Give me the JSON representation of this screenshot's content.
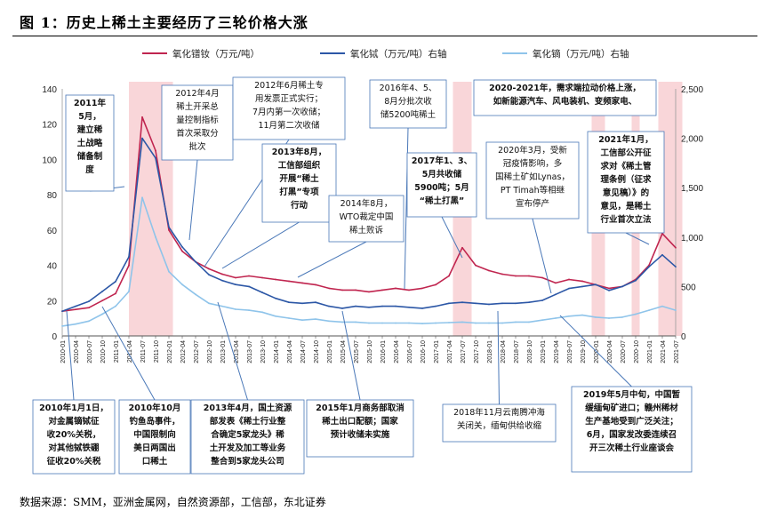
{
  "figure": {
    "title": "图 1：历史上稀土主要经历了三轮价格大涨",
    "source": "数据来源：SMM，亚洲金属网，自然资源部，工信部，东北证券"
  },
  "chart_data": {
    "type": "line",
    "left_axis": {
      "ylim": [
        0,
        140
      ],
      "ticks": [
        0,
        20,
        40,
        60,
        80,
        100,
        120,
        140
      ]
    },
    "right_axis": {
      "ylim": [
        0,
        2500
      ],
      "ticks": [
        0,
        500,
        1000,
        1500,
        2000,
        2500
      ],
      "tick_labels": [
        "0",
        "500",
        "1,000",
        "1,500",
        "2,000",
        "2,500"
      ]
    },
    "x_labels": [
      "2010-01",
      "2010-04",
      "2010-07",
      "2010-10",
      "2011-01",
      "2011-04",
      "2011-07",
      "2011-10",
      "2012-01",
      "2012-04",
      "2012-07",
      "2012-10",
      "2013-01",
      "2013-04",
      "2013-07",
      "2013-10",
      "2014-01",
      "2014-04",
      "2014-07",
      "2014-10",
      "2015-01",
      "2015-04",
      "2015-07",
      "2015-10",
      "2016-01",
      "2016-04",
      "2016-07",
      "2016-10",
      "2017-01",
      "2017-04",
      "2017-07",
      "2017-10",
      "2018-01",
      "2018-04",
      "2018-07",
      "2018-10",
      "2019-01",
      "2019-04",
      "2019-07",
      "2019-10",
      "2020-01",
      "2020-04",
      "2020-07",
      "2020-10",
      "2021-01",
      "2021-04",
      "2021-07"
    ],
    "series": [
      {
        "name": "氧化镨钕（万元/吨）",
        "axis": "left",
        "color": "#c0254f",
        "points": [
          [
            0,
            14
          ],
          [
            1,
            15
          ],
          [
            2,
            16
          ],
          [
            3,
            20
          ],
          [
            4,
            24
          ],
          [
            5,
            40
          ],
          [
            6,
            124
          ],
          [
            7,
            105
          ],
          [
            8,
            60
          ],
          [
            9,
            48
          ],
          [
            10,
            42
          ],
          [
            11,
            38
          ],
          [
            12,
            35
          ],
          [
            13,
            33
          ],
          [
            14,
            34
          ],
          [
            15,
            33
          ],
          [
            16,
            32
          ],
          [
            17,
            31
          ],
          [
            18,
            30
          ],
          [
            19,
            29
          ],
          [
            20,
            27
          ],
          [
            21,
            26
          ],
          [
            22,
            26
          ],
          [
            23,
            25
          ],
          [
            24,
            26
          ],
          [
            25,
            27
          ],
          [
            26,
            26
          ],
          [
            27,
            27
          ],
          [
            28,
            29
          ],
          [
            29,
            34
          ],
          [
            30,
            50
          ],
          [
            31,
            40
          ],
          [
            32,
            37
          ],
          [
            33,
            35
          ],
          [
            34,
            34
          ],
          [
            35,
            34
          ],
          [
            36,
            33
          ],
          [
            37,
            30
          ],
          [
            38,
            32
          ],
          [
            39,
            31
          ],
          [
            40,
            29
          ],
          [
            41,
            27
          ],
          [
            42,
            28
          ],
          [
            43,
            32
          ],
          [
            44,
            40
          ],
          [
            45,
            58
          ],
          [
            46,
            50
          ]
        ]
      },
      {
        "name": "氧化铽（万元/吨）右轴",
        "axis": "right",
        "color": "#2c57a6",
        "points": [
          [
            0,
            250
          ],
          [
            1,
            300
          ],
          [
            2,
            350
          ],
          [
            3,
            450
          ],
          [
            4,
            550
          ],
          [
            5,
            800
          ],
          [
            6,
            2000
          ],
          [
            7,
            1800
          ],
          [
            8,
            1100
          ],
          [
            9,
            900
          ],
          [
            10,
            750
          ],
          [
            11,
            620
          ],
          [
            12,
            560
          ],
          [
            13,
            520
          ],
          [
            14,
            500
          ],
          [
            15,
            440
          ],
          [
            16,
            380
          ],
          [
            17,
            340
          ],
          [
            18,
            330
          ],
          [
            19,
            340
          ],
          [
            20,
            300
          ],
          [
            21,
            280
          ],
          [
            22,
            300
          ],
          [
            23,
            290
          ],
          [
            24,
            300
          ],
          [
            25,
            300
          ],
          [
            26,
            290
          ],
          [
            27,
            280
          ],
          [
            28,
            300
          ],
          [
            29,
            330
          ],
          [
            30,
            340
          ],
          [
            31,
            330
          ],
          [
            32,
            320
          ],
          [
            33,
            330
          ],
          [
            34,
            330
          ],
          [
            35,
            340
          ],
          [
            36,
            360
          ],
          [
            37,
            420
          ],
          [
            38,
            480
          ],
          [
            39,
            500
          ],
          [
            40,
            520
          ],
          [
            41,
            460
          ],
          [
            42,
            500
          ],
          [
            43,
            560
          ],
          [
            44,
            700
          ],
          [
            45,
            820
          ],
          [
            46,
            700
          ]
        ]
      },
      {
        "name": "氧化镝（万元/吨）右轴",
        "axis": "right",
        "color": "#8fc4ea",
        "points": [
          [
            0,
            100
          ],
          [
            1,
            120
          ],
          [
            2,
            150
          ],
          [
            3,
            220
          ],
          [
            4,
            300
          ],
          [
            5,
            450
          ],
          [
            6,
            1400
          ],
          [
            7,
            1000
          ],
          [
            8,
            650
          ],
          [
            9,
            520
          ],
          [
            10,
            420
          ],
          [
            11,
            330
          ],
          [
            12,
            300
          ],
          [
            13,
            270
          ],
          [
            14,
            260
          ],
          [
            15,
            240
          ],
          [
            16,
            200
          ],
          [
            17,
            180
          ],
          [
            18,
            160
          ],
          [
            19,
            170
          ],
          [
            20,
            150
          ],
          [
            21,
            140
          ],
          [
            22,
            140
          ],
          [
            23,
            130
          ],
          [
            24,
            130
          ],
          [
            25,
            130
          ],
          [
            26,
            130
          ],
          [
            27,
            125
          ],
          [
            28,
            130
          ],
          [
            29,
            135
          ],
          [
            30,
            140
          ],
          [
            31,
            130
          ],
          [
            32,
            130
          ],
          [
            33,
            130
          ],
          [
            34,
            140
          ],
          [
            35,
            140
          ],
          [
            36,
            160
          ],
          [
            37,
            180
          ],
          [
            38,
            200
          ],
          [
            39,
            210
          ],
          [
            40,
            190
          ],
          [
            41,
            180
          ],
          [
            42,
            190
          ],
          [
            43,
            220
          ],
          [
            44,
            260
          ],
          [
            45,
            300
          ],
          [
            46,
            260
          ]
        ]
      }
    ],
    "highlight_periods": [
      [
        5,
        8.3
      ],
      [
        29.3,
        30.7
      ],
      [
        39.7,
        40.7
      ],
      [
        42.7,
        43.3
      ],
      [
        44.7,
        46.5
      ]
    ]
  },
  "annotations": [
    {
      "id": "a2011",
      "lines": [
        "2011年",
        "5月，",
        "建立稀",
        "土战略",
        "储备制",
        "度"
      ],
      "bold": true
    },
    {
      "id": "a2012apr",
      "lines": [
        "2012年4月",
        "稀土开采总",
        "量控制指标",
        "首次采取分",
        "批次"
      ],
      "bold": false
    },
    {
      "id": "a2012jun",
      "lines": [
        "2012年6月稀土专",
        "用发票正式实行；",
        "7月内第一次收储；",
        "11月第二次收储"
      ],
      "bold": false
    },
    {
      "id": "a2013aug",
      "lines": [
        "2013年8月，",
        "工信部组织",
        "开展“稀土",
        "打黑”专项",
        "行动"
      ],
      "bold": true
    },
    {
      "id": "a2014aug",
      "lines": [
        "2014年8月，",
        "WTO裁定中国",
        "稀土败诉"
      ],
      "bold": false
    },
    {
      "id": "a2016",
      "lines": [
        "2016年4、5、",
        "8月分批次收",
        "储5200吨稀土"
      ],
      "bold": false
    },
    {
      "id": "a2017",
      "lines": [
        "2017年1、3、",
        "5月共收储",
        "5900吨；5月",
        "“稀土打黑”"
      ],
      "bold": true
    },
    {
      "id": "a2020mar",
      "lines": [
        "2020年3月，受新",
        "冠疫情影响，多",
        "国稀土矿如Lynas，",
        "PT Timah等相继",
        "宣布停产"
      ],
      "bold": false
    },
    {
      "id": "a2020top",
      "lines": [
        "2020-2021年，需求端拉动价格上涨，",
        "如新能源汽车、风电装机、变频家电、"
      ],
      "bold": true
    },
    {
      "id": "a2021jan",
      "lines": [
        "2021年1月，",
        "工信部公开征",
        "求对《稀土管",
        "理条例（征求",
        "意见稿）》的",
        "意见，是稀土",
        "行业首次立法"
      ],
      "bold": true
    },
    {
      "id": "b2010jan",
      "lines": [
        "2010年1月1日，",
        "对金属镝铽征",
        "收20%关税，",
        "对其他铽铁硼",
        "征收20%关税"
      ],
      "bold": true
    },
    {
      "id": "b2010oct",
      "lines": [
        "2010年10月",
        "钓鱼岛事件，",
        "中国限制向",
        "美日两国出",
        "口稀土"
      ],
      "bold": true
    },
    {
      "id": "b2013apr",
      "lines": [
        "2013年4月，国土资源",
        "部发表《稀土行业整",
        "合确定5家龙头》稀",
        "土开发及加工等业务",
        "整合到5家龙头公司"
      ],
      "bold": true
    },
    {
      "id": "b2015jan",
      "lines": [
        "2015年1月商务部取消",
        "稀土出口配额；国家",
        "预计收储未实施"
      ],
      "bold": true
    },
    {
      "id": "b2018nov",
      "lines": [
        "2018年11月云南腾冲海",
        "关闭关，缅甸供给收缩"
      ],
      "bold": false
    },
    {
      "id": "b2019may",
      "lines": [
        "2019年5月中旬，中国暂",
        "缓缅甸矿进口；赣州稀材",
        "生产基地受到广泛关注；",
        "6月，国家发改委连续召",
        "开三次稀土行业座谈会"
      ],
      "bold": true
    }
  ]
}
